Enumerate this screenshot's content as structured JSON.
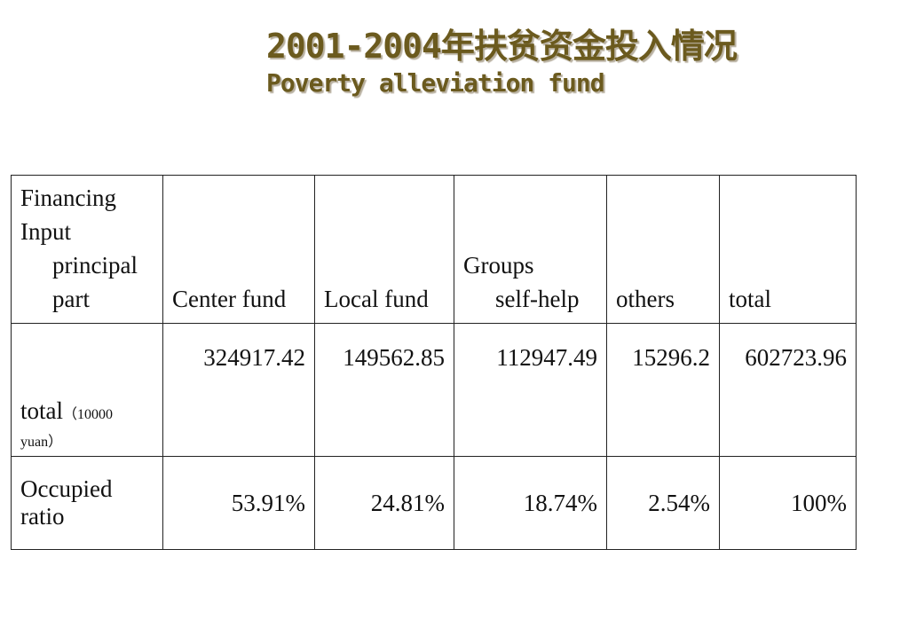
{
  "title": {
    "line1": "2001-2004年扶贫资金投入情况",
    "line2": "Poverty alleviation fund"
  },
  "table": {
    "header": {
      "col0": [
        "Financing",
        "Input",
        "principal",
        "part"
      ],
      "col1": "Center fund",
      "col2": "Local fund",
      "col3": [
        "Groups",
        "self-help"
      ],
      "col4": "others",
      "col5": "total"
    },
    "rows": [
      {
        "label": "total",
        "unit": "（10000",
        "unit2": "yuan）",
        "values": [
          "324917.42",
          "149562.85",
          "112947.49",
          "15296.2",
          "602723.96"
        ]
      },
      {
        "label": [
          "Occupied",
          "ratio"
        ],
        "values": [
          "53.91%",
          "24.81%",
          "18.74%",
          "2.54%",
          "100%"
        ]
      }
    ]
  }
}
